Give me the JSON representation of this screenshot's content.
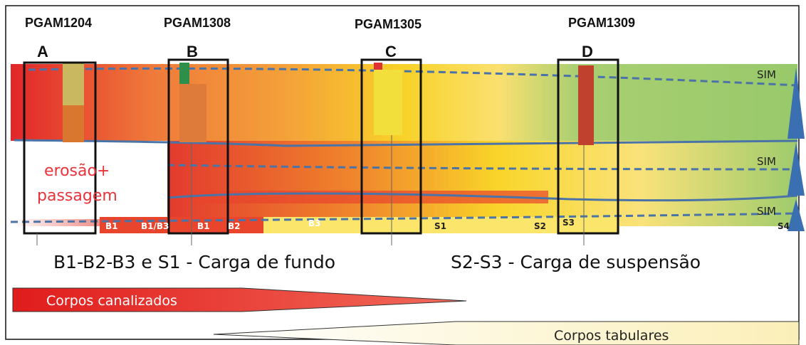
{
  "wells": [
    {
      "name": "PGAM1204",
      "letter": "A"
    },
    {
      "name": "PGAM1308",
      "letter": "B"
    },
    {
      "name": "PGAM1305",
      "letter": "C"
    },
    {
      "name": "PGAM1309",
      "letter": "D"
    }
  ],
  "surfaces": [
    "SIM",
    "SIM",
    "SIM"
  ],
  "annotation": [
    "erosão+",
    "passagem"
  ],
  "units": [
    "B1",
    "B1/B3",
    "B1",
    "B2",
    "B3",
    "S1",
    "S2",
    "S3",
    "S4"
  ],
  "captions": [
    "B1-B2-B3 e S1 - Carga de fundo",
    "S2-S3 - Carga de suspensão"
  ],
  "bodies": [
    "Corpos canalizados",
    "Corpos tabulares"
  ]
}
